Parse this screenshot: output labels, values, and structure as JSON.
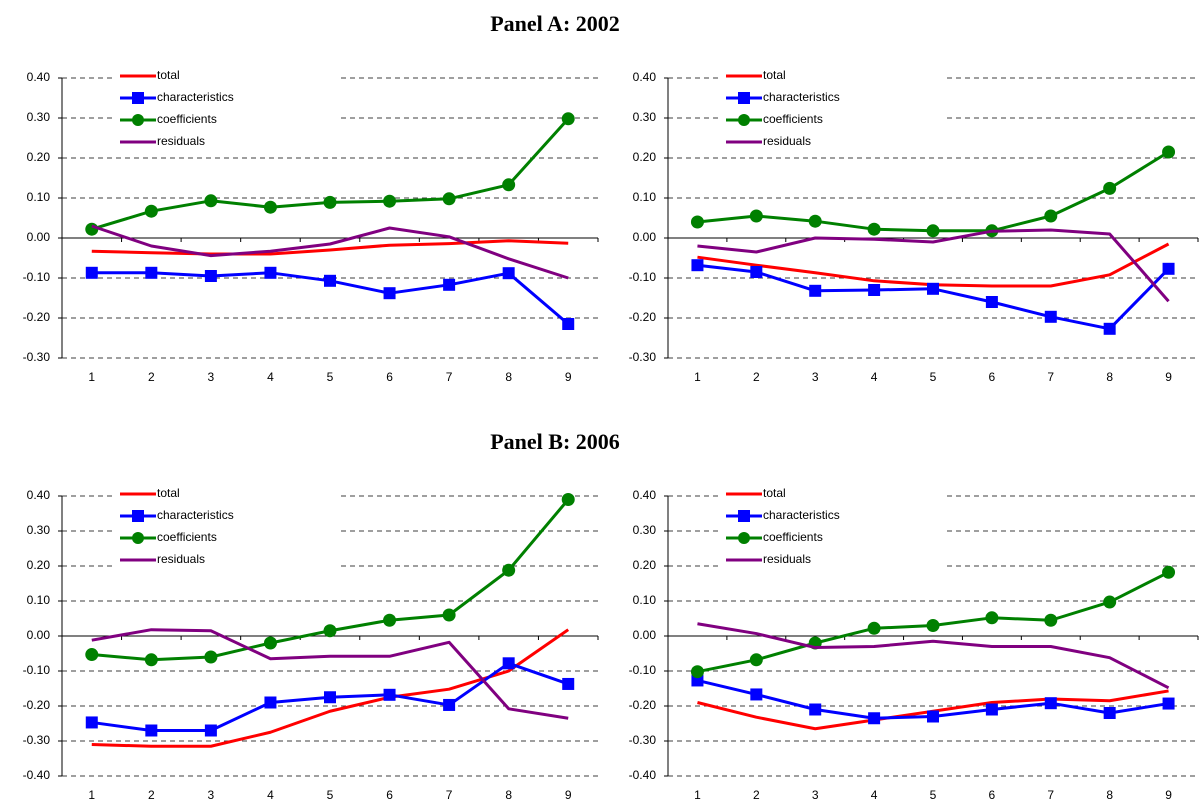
{
  "panels": [
    "Panel A: 2002",
    "Panel B: 2006"
  ],
  "chart_data": [
    {
      "type": "line",
      "categories": [
        "1",
        "2",
        "3",
        "4",
        "5",
        "6",
        "7",
        "8",
        "9"
      ],
      "ylim": [
        -0.3,
        0.4
      ],
      "yticks": [
        {
          "value": -0.3,
          "label": "-0.30"
        },
        {
          "value": -0.2,
          "label": "-0.20"
        },
        {
          "value": -0.1,
          "label": "-0.10"
        },
        {
          "value": 0,
          "label": "0.00"
        },
        {
          "value": 0.1,
          "label": "0.10"
        },
        {
          "value": 0.2,
          "label": "0.20"
        },
        {
          "value": 0.3,
          "label": "0.30"
        },
        {
          "value": 0.4,
          "label": "0.40"
        }
      ],
      "grid": true,
      "legend": "upper left",
      "series": [
        {
          "name": "total",
          "color": "#ff0000",
          "values": [
            -0.033,
            -0.037,
            -0.04,
            -0.04,
            -0.03,
            -0.018,
            -0.014,
            -0.007,
            -0.013
          ]
        },
        {
          "name": "characteristics",
          "color": "#0000ff",
          "marker": "square",
          "values": [
            -0.087,
            -0.087,
            -0.095,
            -0.087,
            -0.107,
            -0.138,
            -0.117,
            -0.088,
            -0.215
          ]
        },
        {
          "name": "coefficients",
          "color": "#008000",
          "marker": "circle",
          "values": [
            0.022,
            0.067,
            0.093,
            0.077,
            0.089,
            0.092,
            0.098,
            0.133,
            0.298
          ]
        },
        {
          "name": "residuals",
          "color": "#800080",
          "values": [
            0.03,
            -0.02,
            -0.044,
            -0.033,
            -0.015,
            0.025,
            0.003,
            -0.052,
            -0.1
          ]
        }
      ]
    },
    {
      "type": "line",
      "categories": [
        "1",
        "2",
        "3",
        "4",
        "5",
        "6",
        "7",
        "8",
        "9"
      ],
      "ylim": [
        -0.3,
        0.4
      ],
      "yticks": [
        {
          "value": -0.3,
          "label": "-0.30"
        },
        {
          "value": -0.2,
          "label": "-0.20"
        },
        {
          "value": -0.1,
          "label": "-0.10"
        },
        {
          "value": 0,
          "label": "0.00"
        },
        {
          "value": 0.1,
          "label": "0.10"
        },
        {
          "value": 0.2,
          "label": "0.20"
        },
        {
          "value": 0.3,
          "label": "0.30"
        },
        {
          "value": 0.4,
          "label": "0.40"
        }
      ],
      "grid": true,
      "legend": "upper left",
      "series": [
        {
          "name": "total",
          "color": "#ff0000",
          "values": [
            -0.048,
            -0.068,
            -0.087,
            -0.107,
            -0.117,
            -0.12,
            -0.12,
            -0.092,
            -0.015
          ]
        },
        {
          "name": "characteristics",
          "color": "#0000ff",
          "marker": "square",
          "values": [
            -0.068,
            -0.085,
            -0.132,
            -0.13,
            -0.127,
            -0.16,
            -0.197,
            -0.227,
            -0.077
          ]
        },
        {
          "name": "coefficients",
          "color": "#008000",
          "marker": "circle",
          "values": [
            0.04,
            0.055,
            0.042,
            0.022,
            0.018,
            0.018,
            0.055,
            0.124,
            0.215
          ]
        },
        {
          "name": "residuals",
          "color": "#800080",
          "values": [
            -0.02,
            -0.035,
            0.0,
            -0.003,
            -0.01,
            0.017,
            0.02,
            0.01,
            -0.158
          ]
        }
      ]
    },
    {
      "type": "line",
      "categories": [
        "1",
        "2",
        "3",
        "4",
        "5",
        "6",
        "7",
        "8",
        "9"
      ],
      "ylim": [
        -0.4,
        0.4
      ],
      "yticks": [
        {
          "value": -0.4,
          "label": "-0.40"
        },
        {
          "value": -0.3,
          "label": "-0.30"
        },
        {
          "value": -0.2,
          "label": "-0.20"
        },
        {
          "value": -0.1,
          "label": "-0.10"
        },
        {
          "value": 0,
          "label": "0.00"
        },
        {
          "value": 0.1,
          "label": "0.10"
        },
        {
          "value": 0.2,
          "label": "0.20"
        },
        {
          "value": 0.3,
          "label": "0.30"
        },
        {
          "value": 0.4,
          "label": "0.40"
        }
      ],
      "grid": true,
      "legend": "upper left",
      "series": [
        {
          "name": "total",
          "color": "#ff0000",
          "values": [
            -0.31,
            -0.315,
            -0.315,
            -0.275,
            -0.215,
            -0.175,
            -0.152,
            -0.1,
            0.018
          ]
        },
        {
          "name": "characteristics",
          "color": "#0000ff",
          "marker": "square",
          "values": [
            -0.247,
            -0.27,
            -0.27,
            -0.19,
            -0.175,
            -0.168,
            -0.197,
            -0.078,
            -0.137
          ]
        },
        {
          "name": "coefficients",
          "color": "#008000",
          "marker": "circle",
          "values": [
            -0.053,
            -0.068,
            -0.06,
            -0.02,
            0.015,
            0.045,
            0.06,
            0.188,
            0.39
          ]
        },
        {
          "name": "residuals",
          "color": "#800080",
          "values": [
            -0.012,
            0.018,
            0.015,
            -0.065,
            -0.058,
            -0.058,
            -0.018,
            -0.208,
            -0.235
          ]
        }
      ]
    },
    {
      "type": "line",
      "categories": [
        "1",
        "2",
        "3",
        "4",
        "5",
        "6",
        "7",
        "8",
        "9"
      ],
      "ylim": [
        -0.4,
        0.4
      ],
      "yticks": [
        {
          "value": -0.4,
          "label": "-0.40"
        },
        {
          "value": -0.3,
          "label": "-0.30"
        },
        {
          "value": -0.2,
          "label": "-0.20"
        },
        {
          "value": -0.1,
          "label": "-0.10"
        },
        {
          "value": 0,
          "label": "0.00"
        },
        {
          "value": 0.1,
          "label": "0.10"
        },
        {
          "value": 0.2,
          "label": "0.20"
        },
        {
          "value": 0.3,
          "label": "0.30"
        },
        {
          "value": 0.4,
          "label": "0.40"
        }
      ],
      "grid": true,
      "legend": "upper left",
      "series": [
        {
          "name": "total",
          "color": "#ff0000",
          "values": [
            -0.19,
            -0.232,
            -0.265,
            -0.24,
            -0.215,
            -0.19,
            -0.18,
            -0.185,
            -0.157
          ]
        },
        {
          "name": "characteristics",
          "color": "#0000ff",
          "marker": "square",
          "values": [
            -0.127,
            -0.167,
            -0.21,
            -0.235,
            -0.23,
            -0.21,
            -0.192,
            -0.22,
            -0.193
          ]
        },
        {
          "name": "coefficients",
          "color": "#008000",
          "marker": "circle",
          "values": [
            -0.102,
            -0.068,
            -0.02,
            0.022,
            0.03,
            0.052,
            0.045,
            0.097,
            0.182
          ]
        },
        {
          "name": "residuals",
          "color": "#800080",
          "values": [
            0.035,
            0.007,
            -0.033,
            -0.03,
            -0.015,
            -0.03,
            -0.03,
            -0.062,
            -0.148
          ]
        }
      ]
    }
  ]
}
